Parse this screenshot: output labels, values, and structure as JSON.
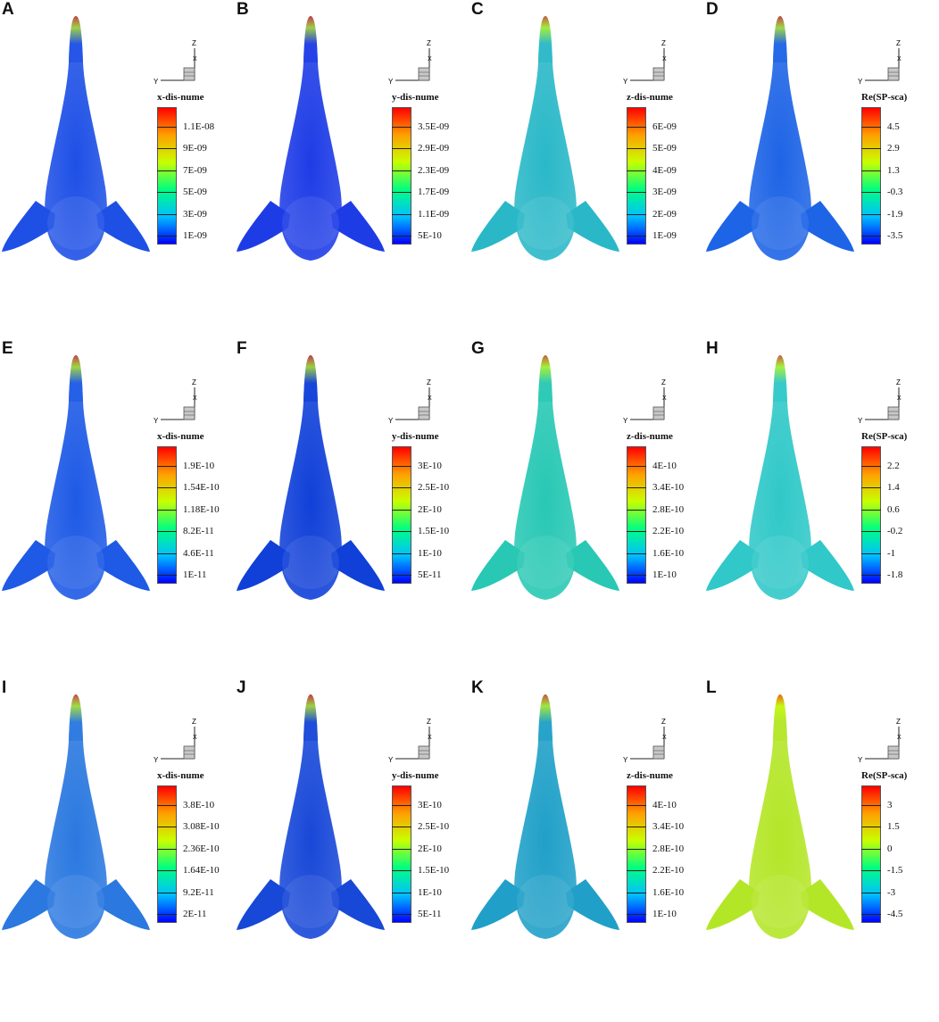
{
  "panels": [
    {
      "label": "A",
      "legend": "x-dis-nume",
      "ticks": [
        "1.1E-08",
        "9E-09",
        "7E-09",
        "5E-09",
        "3E-09",
        "1E-09"
      ]
    },
    {
      "label": "B",
      "legend": "y-dis-nume",
      "ticks": [
        "3.5E-09",
        "2.9E-09",
        "2.3E-09",
        "1.7E-09",
        "1.1E-09",
        "5E-10"
      ]
    },
    {
      "label": "C",
      "legend": "z-dis-nume",
      "ticks": [
        "6E-09",
        "5E-09",
        "4E-09",
        "3E-09",
        "2E-09",
        "1E-09"
      ]
    },
    {
      "label": "D",
      "legend": "Re(SP-sca)",
      "ticks": [
        "4.5",
        "2.9",
        "1.3",
        "-0.3",
        "-1.9",
        "-3.5"
      ]
    },
    {
      "label": "E",
      "legend": "x-dis-nume",
      "ticks": [
        "1.9E-10",
        "1.54E-10",
        "1.18E-10",
        "8.2E-11",
        "4.6E-11",
        "1E-11"
      ]
    },
    {
      "label": "F",
      "legend": "y-dis-nume",
      "ticks": [
        "3E-10",
        "2.5E-10",
        "2E-10",
        "1.5E-10",
        "1E-10",
        "5E-11"
      ]
    },
    {
      "label": "G",
      "legend": "z-dis-nume",
      "ticks": [
        "4E-10",
        "3.4E-10",
        "2.8E-10",
        "2.2E-10",
        "1.6E-10",
        "1E-10"
      ]
    },
    {
      "label": "H",
      "legend": "Re(SP-sca)",
      "ticks": [
        "2.2",
        "1.4",
        "0.6",
        "-0.2",
        "-1",
        "-1.8"
      ]
    },
    {
      "label": "I",
      "legend": "x-dis-nume",
      "ticks": [
        "3.8E-10",
        "3.08E-10",
        "2.36E-10",
        "1.64E-10",
        "9.2E-11",
        "2E-11"
      ]
    },
    {
      "label": "J",
      "legend": "y-dis-nume",
      "ticks": [
        "3E-10",
        "2.5E-10",
        "2E-10",
        "1.5E-10",
        "1E-10",
        "5E-11"
      ]
    },
    {
      "label": "K",
      "legend": "z-dis-nume",
      "ticks": [
        "4E-10",
        "3.4E-10",
        "2.8E-10",
        "2.2E-10",
        "1.6E-10",
        "1E-10"
      ]
    },
    {
      "label": "L",
      "legend": "Re(SP-sca)",
      "ticks": [
        "3",
        "1.5",
        "0",
        "-1.5",
        "-3",
        "-4.5"
      ]
    }
  ],
  "axis_labels": {
    "y": "Y",
    "z": "Z",
    "x": "X"
  },
  "colormap": [
    "#0000ff",
    "#00c0ff",
    "#00ff80",
    "#c8ff00",
    "#ffa000",
    "#ff0000"
  ],
  "fish_base_colors": [
    "#1e50e6",
    "#1e3ce6",
    "#2ab8c8",
    "#1e64e6",
    "#1e5ae6",
    "#1040d8",
    "#28c8b4",
    "#30c8c8",
    "#2a78e0",
    "#1848d8",
    "#20a0c8",
    "#b4e628"
  ],
  "icons": {
    "triad": "axis-triad-icon"
  }
}
